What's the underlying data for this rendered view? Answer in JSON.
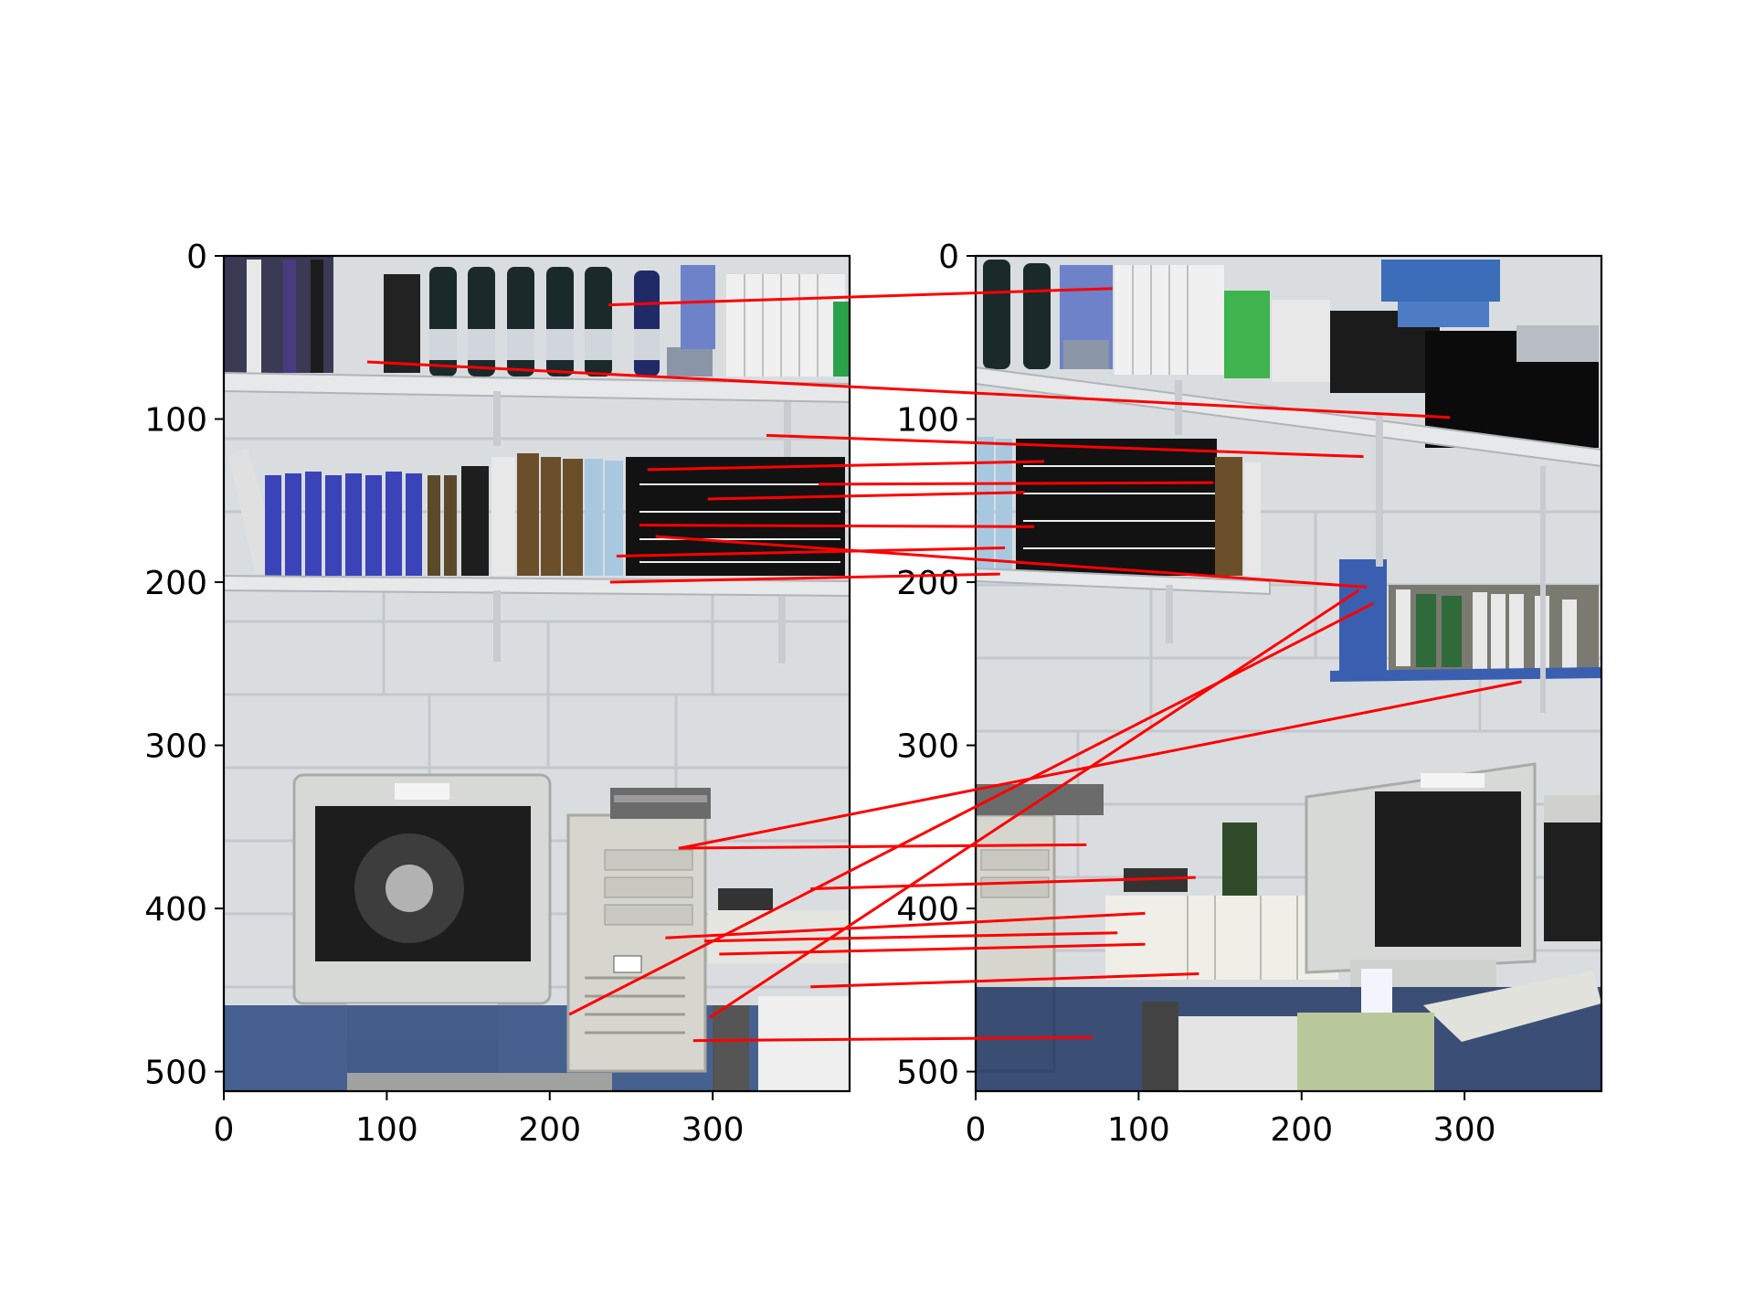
{
  "figure": {
    "kind": "feature-matches",
    "line_color": "#ff0000",
    "panels": [
      {
        "id": "left",
        "image_width": 384,
        "image_height": 512,
        "content": "photo of office corner: wine bottles and binders on top shelf, books on middle shelf, CRT monitor and beige PC tower on desk",
        "xticks": [
          0,
          100,
          200,
          300
        ],
        "yticks": [
          0,
          100,
          200,
          300,
          400,
          500
        ]
      },
      {
        "id": "right",
        "image_width": 384,
        "image_height": 512,
        "content": "photo of same office from shifted viewpoint: binders on top shelf, books on middle shelf, blue shelf with tapes, CRT monitor and keyboard on desk",
        "xticks": [
          0,
          100,
          200,
          300
        ],
        "yticks": [
          0,
          100,
          200,
          300,
          400,
          500
        ]
      }
    ]
  },
  "chart_data": {
    "type": "scatter",
    "title": "",
    "xlabel": "",
    "ylabel": "",
    "xlim": [
      0,
      384
    ],
    "ylim": [
      512,
      0
    ],
    "series": [
      {
        "values": [
          {
            "left": [
              236,
              30
            ],
            "right": [
              84,
              20
            ]
          },
          {
            "left": [
              88,
              65
            ],
            "right": [
              291,
              99
            ]
          },
          {
            "left": [
              333,
              110
            ],
            "right": [
              238,
              123
            ]
          },
          {
            "left": [
              260,
              131
            ],
            "right": [
              42,
              126
            ]
          },
          {
            "left": [
              365,
              140
            ],
            "right": [
              146,
              139
            ]
          },
          {
            "left": [
              297,
              149
            ],
            "right": [
              30,
              145
            ]
          },
          {
            "left": [
              255,
              165
            ],
            "right": [
              36,
              166
            ]
          },
          {
            "left": [
              265,
              172
            ],
            "right": [
              240,
              203
            ]
          },
          {
            "left": [
              241,
              184
            ],
            "right": [
              18,
              179
            ]
          },
          {
            "left": [
              237,
              200
            ],
            "right": [
              15,
              195
            ]
          },
          {
            "left": [
              280,
              363
            ],
            "right": [
              335,
              261
            ]
          },
          {
            "left": [
              279,
              363
            ],
            "right": [
              68,
              361
            ]
          },
          {
            "left": [
              360,
              388
            ],
            "right": [
              135,
              381
            ]
          },
          {
            "left": [
              271,
              418
            ],
            "right": [
              104,
              403
            ]
          },
          {
            "left": [
              212,
              465
            ],
            "right": [
              244,
              213
            ]
          },
          {
            "left": [
              295,
              420
            ],
            "right": [
              87,
              415
            ]
          },
          {
            "left": [
              304,
              428
            ],
            "right": [
              104,
              422
            ]
          },
          {
            "left": [
              360,
              448
            ],
            "right": [
              137,
              440
            ]
          },
          {
            "left": [
              298,
              467
            ],
            "right": [
              235,
              205
            ]
          },
          {
            "left": [
              288,
              481
            ],
            "right": [
              72,
              479
            ]
          }
        ]
      }
    ]
  }
}
